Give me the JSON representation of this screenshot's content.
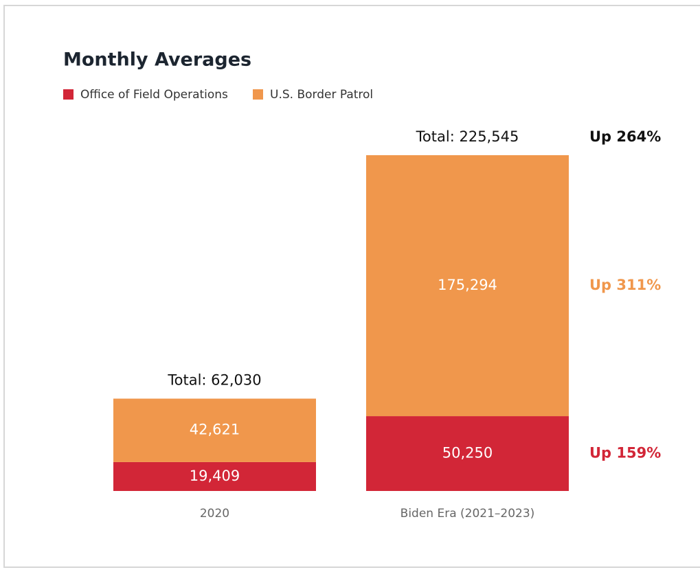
{
  "chart_data": {
    "type": "stacked-bar",
    "title": "Monthly Averages",
    "categories": [
      "2020",
      "Biden Era (2021–2023)"
    ],
    "series": [
      {
        "name": "Office of Field Operations",
        "color": "#d22637",
        "values": [
          19409,
          50250
        ],
        "value_labels": [
          "19,409",
          "50,250"
        ]
      },
      {
        "name": "U.S. Border Patrol",
        "color": "#f0974c",
        "values": [
          42621,
          175294
        ],
        "value_labels": [
          "42,621",
          "175,294"
        ]
      }
    ],
    "totals": [
      62030,
      225545
    ],
    "total_labels": [
      "Total: 62,030",
      "Total: 225,545"
    ],
    "annotations": [
      {
        "text": "Up 264%",
        "color": "#111111"
      },
      {
        "text": "Up 159%",
        "color": "#d22637"
      },
      {
        "text": "Up 311%",
        "color": "#f0974c"
      }
    ]
  }
}
